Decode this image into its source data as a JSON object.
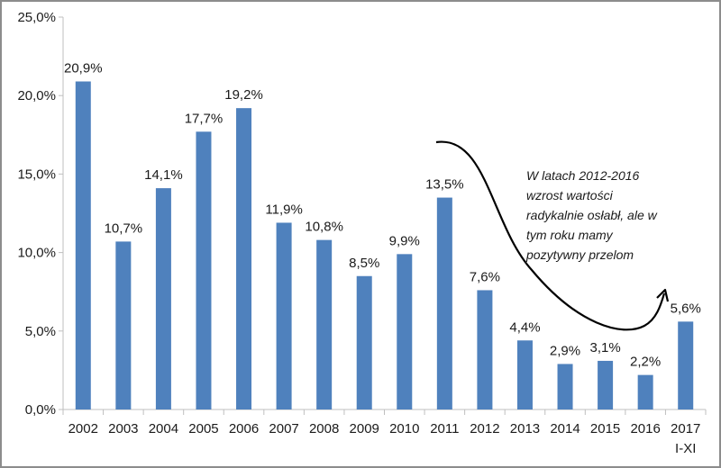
{
  "chart_data": {
    "type": "bar",
    "title": "",
    "xlabel": "",
    "ylabel": "",
    "ylim": [
      0,
      25
    ],
    "yticks": [
      "0,0%",
      "5,0%",
      "10,0%",
      "15,0%",
      "20,0%",
      "25,0%"
    ],
    "ytick_values": [
      0,
      5,
      10,
      15,
      20,
      25
    ],
    "grid": false,
    "legend": "none",
    "bar_color": "#4f81bd",
    "categories": [
      [
        "2002"
      ],
      [
        "2003"
      ],
      [
        "2004"
      ],
      [
        "2005"
      ],
      [
        "2006"
      ],
      [
        "2007"
      ],
      [
        "2008"
      ],
      [
        "2009"
      ],
      [
        "2010"
      ],
      [
        "2011"
      ],
      [
        "2012"
      ],
      [
        "2013"
      ],
      [
        "2014"
      ],
      [
        "2015"
      ],
      [
        "2016"
      ],
      [
        "2017",
        "I-XI"
      ]
    ],
    "values": [
      20.9,
      10.7,
      14.1,
      17.7,
      19.2,
      11.9,
      10.8,
      8.5,
      9.9,
      13.5,
      7.6,
      4.4,
      2.9,
      3.1,
      2.2,
      5.6
    ],
    "data_labels": [
      "20,9%",
      "10,7%",
      "14,1%",
      "17,7%",
      "19,2%",
      "11,9%",
      "10,8%",
      "8,5%",
      "9,9%",
      "13,5%",
      "7,6%",
      "4,4%",
      "2,9%",
      "3,1%",
      "2,2%",
      "5,6%"
    ],
    "annotation": {
      "lines": [
        "W latach 2012-2016",
        "wzrost wartości",
        "radykalnie osłabł, ale w",
        "tym roku mamy",
        "pozytywny przelom"
      ],
      "arrow": "curved-arrow from 2011 dipping to 2016 then up to 2017"
    }
  }
}
